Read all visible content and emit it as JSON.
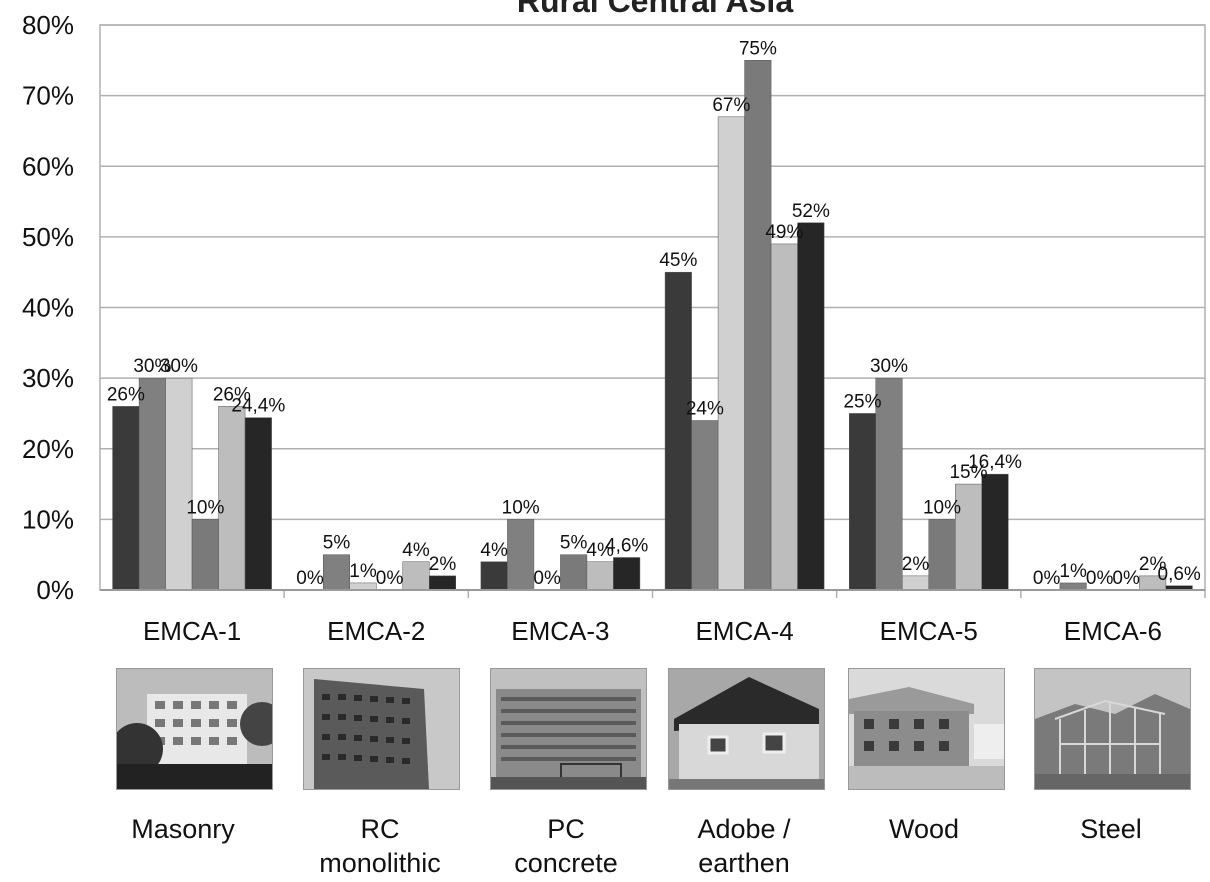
{
  "chart_data": {
    "type": "bar",
    "title": "Rural Central Asia",
    "ylim": [
      0,
      80
    ],
    "yticks": [
      "0%",
      "10%",
      "20%",
      "30%",
      "40%",
      "50%",
      "60%",
      "70%",
      "80%"
    ],
    "grid": true,
    "categories": [
      "EMCA-1",
      "EMCA-2",
      "EMCA-3",
      "EMCA-4",
      "EMCA-5",
      "EMCA-6"
    ],
    "series": [
      {
        "values": [
          26,
          0,
          4,
          45,
          25,
          0
        ],
        "labels": [
          "26%",
          "0%",
          "4%",
          "45%",
          "25%",
          "0%"
        ],
        "color": "#3a3a3a"
      },
      {
        "values": [
          30,
          5,
          10,
          24,
          30,
          1
        ],
        "labels": [
          "30%",
          "5%",
          "10%",
          "24%",
          "30%",
          "1%"
        ],
        "color": "#808080"
      },
      {
        "values": [
          30,
          1,
          0,
          67,
          2,
          0
        ],
        "labels": [
          "30%",
          "1%",
          "0%",
          "67%",
          "2%",
          "0%"
        ],
        "color": "#d0d0d0"
      },
      {
        "values": [
          10,
          0,
          5,
          75,
          10,
          0
        ],
        "labels": [
          "10%",
          "0%",
          "5%",
          "75%",
          "10%",
          "0%"
        ],
        "color": "#7a7a7a"
      },
      {
        "values": [
          26,
          4,
          4,
          49,
          15,
          2
        ],
        "labels": [
          "26%",
          "4%",
          "4%",
          "49%",
          "15%",
          "2%"
        ],
        "color": "#bdbdbd"
      },
      {
        "values": [
          24.4,
          2,
          4.6,
          52,
          16.4,
          0.6
        ],
        "labels": [
          "24,4%",
          "2%",
          "4,6%",
          "52%",
          "16,4%",
          "0,6%"
        ],
        "color": "#262626"
      }
    ]
  },
  "building_types": [
    "Masonry",
    "RC\nmonolithic",
    "PC\nconcrete",
    "Adobe /\nearthen",
    "Wood",
    "Steel"
  ],
  "photos": [
    {
      "icon": "masonry-building-photo-icon"
    },
    {
      "icon": "rc-monolithic-building-photo-icon"
    },
    {
      "icon": "pc-concrete-building-photo-icon"
    },
    {
      "icon": "adobe-house-photo-icon"
    },
    {
      "icon": "wood-house-photo-icon"
    },
    {
      "icon": "steel-frame-photo-icon"
    }
  ]
}
